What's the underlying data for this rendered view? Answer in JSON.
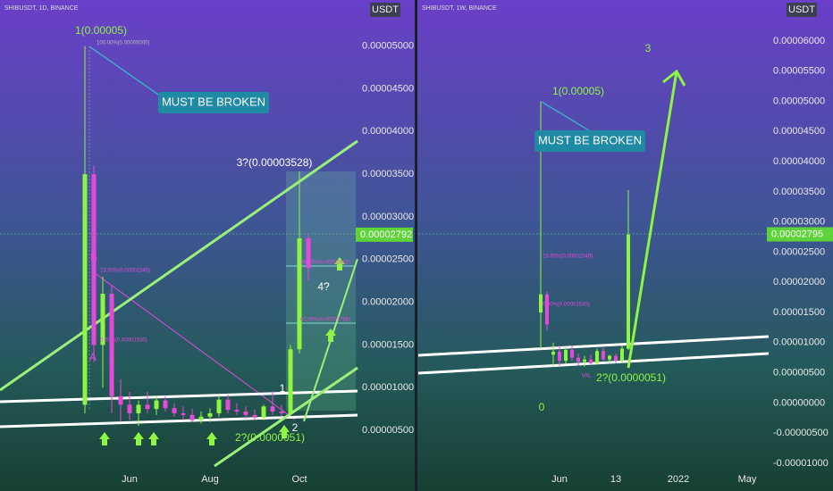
{
  "chart_data": [
    {
      "type": "candlestick",
      "title": "SHIBUSDT, 1D, BINANCE",
      "currency": "USDT",
      "categories": [
        null,
        null,
        null,
        null,
        null,
        "Jun",
        null,
        null,
        null,
        null,
        null,
        null,
        null,
        null,
        "Aug",
        null,
        null,
        null,
        null,
        null,
        null,
        null,
        null,
        null,
        "Oct",
        null
      ],
      "open": [
        8e-06,
        3.5e-05,
        1.5e-05,
        2.1e-05,
        9e-06,
        8e-06,
        7e-06,
        8e-06,
        7.5e-06,
        8.5e-06,
        7.6e-06,
        7e-06,
        6.8e-06,
        6.2e-06,
        6.6e-06,
        7e-06,
        8.6e-06,
        7.4e-06,
        7.2e-06,
        6.8e-06,
        6.5e-06,
        7.8e-06,
        7.2e-06,
        7e-06,
        1.45e-05,
        2.75e-05
      ],
      "high": [
        5e-05,
        3.6e-05,
        2.3e-05,
        2.2e-05,
        1.1e-05,
        9.5e-06,
        8.5e-06,
        9.5e-06,
        9e-06,
        9e-06,
        8.2e-06,
        7.8e-06,
        7.5e-06,
        7.2e-06,
        7.6e-06,
        9.2e-06,
        9.2e-06,
        8.2e-06,
        7.8e-06,
        7.4e-06,
        8e-06,
        9.6e-06,
        8e-06,
        1.5e-05,
        3.53e-05,
        2.8e-05
      ],
      "low": [
        7e-06,
        1.3e-05,
        1e-05,
        7e-06,
        6e-06,
        6.2e-06,
        5.5e-06,
        7e-06,
        6.8e-06,
        7.2e-06,
        6.6e-06,
        6.2e-06,
        6e-06,
        5.8e-06,
        6e-06,
        6.6e-06,
        7e-06,
        6.8e-06,
        6.4e-06,
        6.2e-06,
        6.2e-06,
        6.8e-06,
        6.6e-06,
        6.8e-06,
        1.4e-05,
        2.25e-05
      ],
      "close": [
        3.5e-05,
        1.5e-05,
        2.1e-05,
        9e-06,
        8e-06,
        7e-06,
        8e-06,
        7.5e-06,
        8.5e-06,
        7.6e-06,
        7e-06,
        6.8e-06,
        6.2e-06,
        6.6e-06,
        7e-06,
        8.6e-06,
        7.4e-06,
        7.2e-06,
        6.8e-06,
        6.5e-06,
        7.8e-06,
        7.2e-06,
        7e-06,
        1.45e-05,
        2.75e-05,
        2.4e-05
      ],
      "up_color": "#8ef542",
      "down_color": "#e34ad8",
      "ylim": [
        -2.1e-06,
        5.54e-05
      ],
      "yticks": [
        {
          "value": 5e-06,
          "label": "0.00000500"
        },
        {
          "value": 1e-05,
          "label": "0.00001000"
        },
        {
          "value": 1.5e-05,
          "label": "0.00001500"
        },
        {
          "value": 2e-05,
          "label": "0.00002000"
        },
        {
          "value": 2.5e-05,
          "label": "0.00002500"
        },
        {
          "value": 3e-05,
          "label": "0.00003000"
        },
        {
          "value": 3.5e-05,
          "label": "0.00003500"
        },
        {
          "value": 4e-05,
          "label": "0.00004000"
        },
        {
          "value": 4.5e-05,
          "label": "0.00004500"
        },
        {
          "value": 5e-05,
          "label": "0.00005000"
        }
      ],
      "last_price": {
        "value": 2.792e-05,
        "label": "0.00002792"
      },
      "annotations": [
        {
          "text": "1(0.00005)",
          "color": "#8ef542"
        },
        {
          "text": "100.00%(0.00005000)",
          "color": "#bbbbbb"
        },
        {
          "text": "MUST BE BROKEN",
          "color": "#ffffff"
        },
        {
          "text": "3?(0.00003528)",
          "color": "#ffffff"
        },
        {
          "text": "23.60%(0.00002349)",
          "color": "#e34ad8"
        },
        {
          "text": "38.20%(0.00002432)",
          "color": "#e34ad8"
        },
        {
          "text": "61.80%(0.00001756)",
          "color": "#e34ad8"
        },
        {
          "text": "4?",
          "color": "#ffffff"
        },
        {
          "text": "B",
          "color": "#e34ad8"
        },
        {
          "text": "A",
          "color": "#e34ad8"
        },
        {
          "text": "1",
          "color": "#ffffff"
        },
        {
          "text": "2?(0.0000051)",
          "color": "#8ef542"
        },
        {
          "text": "2",
          "color": "#ffffff"
        },
        {
          "text": "0.00%(0.00001530)",
          "color": "#e34ad8"
        }
      ]
    },
    {
      "type": "candlestick",
      "title": "SHIBUSDT, 1W, BINANCE",
      "currency": "USDT",
      "categories": [
        null,
        null,
        null,
        "Jun",
        null,
        null,
        null,
        null,
        null,
        null,
        null,
        null,
        "13",
        null,
        null,
        null,
        null,
        null,
        null,
        null,
        null,
        null,
        "2022",
        null,
        null,
        null,
        null,
        null,
        null,
        null,
        null,
        null,
        null,
        "May"
      ],
      "open": [
        1.5e-05,
        1.8e-05,
        8e-06,
        8.5e-06,
        7e-06,
        8.8e-06,
        7.5e-06,
        6.8e-06,
        7.2e-06,
        6.6e-06,
        8.6e-06,
        7.2e-06,
        7.8e-06,
        7e-06,
        9e-06,
        null,
        null,
        null,
        null,
        null,
        null,
        null,
        null,
        null,
        null,
        null,
        null,
        null,
        null,
        null,
        null,
        null,
        null,
        null
      ],
      "high": [
        5e-05,
        1.85e-05,
        1e-05,
        9.5e-06,
        9.2e-06,
        9.5e-06,
        8.2e-06,
        7.8e-06,
        8e-06,
        9e-06,
        9.2e-06,
        8e-06,
        8.2e-06,
        9.6e-06,
        3.53e-05,
        null,
        null,
        null,
        null,
        null,
        null,
        null,
        null,
        null,
        null,
        null,
        null,
        null,
        null,
        null,
        null,
        null,
        null,
        null
      ],
      "low": [
        9e-06,
        1.2e-05,
        6e-06,
        6.2e-06,
        6.5e-06,
        7e-06,
        6.2e-06,
        6e-06,
        6.4e-06,
        6.4e-06,
        7e-06,
        6.6e-06,
        6.6e-06,
        6.6e-06,
        8.8e-06,
        null,
        null,
        null,
        null,
        null,
        null,
        null,
        null,
        null,
        null,
        null,
        null,
        null,
        null,
        null,
        null,
        null,
        null,
        null
      ],
      "close": [
        1.8e-05,
        1.3e-05,
        8.5e-06,
        7e-06,
        8.8e-06,
        7.5e-06,
        6.8e-06,
        7.2e-06,
        6.6e-06,
        8.6e-06,
        7.2e-06,
        7.8e-06,
        7e-06,
        9e-06,
        2.79e-05,
        null,
        null,
        null,
        null,
        null,
        null,
        null,
        null,
        null,
        null,
        null,
        null,
        null,
        null,
        null,
        null,
        null,
        null,
        null
      ],
      "up_color": "#8ef542",
      "down_color": "#e34ad8",
      "ylim": [
        -1.46e-05,
        6.68e-05
      ],
      "yticks": [
        {
          "value": -1e-05,
          "label": "-0.00001000"
        },
        {
          "value": -5e-06,
          "label": "-0.00000500"
        },
        {
          "value": 0,
          "label": "0.00000000"
        },
        {
          "value": 5e-06,
          "label": "0.00000500"
        },
        {
          "value": 1e-05,
          "label": "0.00001000"
        },
        {
          "value": 1.5e-05,
          "label": "0.00001500"
        },
        {
          "value": 2e-05,
          "label": "0.00002000"
        },
        {
          "value": 2.5e-05,
          "label": "0.00002500"
        },
        {
          "value": 3e-05,
          "label": "0.00003000"
        },
        {
          "value": 3.5e-05,
          "label": "0.00003500"
        },
        {
          "value": 4e-05,
          "label": "0.00004000"
        },
        {
          "value": 4.5e-05,
          "label": "0.00004500"
        },
        {
          "value": 5e-05,
          "label": "0.00005000"
        },
        {
          "value": 5.5e-05,
          "label": "0.00005500"
        },
        {
          "value": 6e-05,
          "label": "0.00006000"
        }
      ],
      "last_price": {
        "value": 2.795e-05,
        "label": "0.00002795"
      },
      "annotations": [
        {
          "text": "3",
          "color": "#8ef542"
        },
        {
          "text": "1(0.00005)",
          "color": "#8ef542"
        },
        {
          "text": "MUST BE BROKEN",
          "color": "#ffffff"
        },
        {
          "text": "23.60%(0.00002349)",
          "color": "#e34ad8"
        },
        {
          "text": "0.00%(0.00001530)",
          "color": "#e34ad8"
        },
        {
          "text": "0",
          "color": "#8ef542"
        },
        {
          "text": "2?(0.0000051)",
          "color": "#8ef542"
        },
        {
          "text": "VAL",
          "color": "#e34ad8"
        }
      ]
    }
  ]
}
